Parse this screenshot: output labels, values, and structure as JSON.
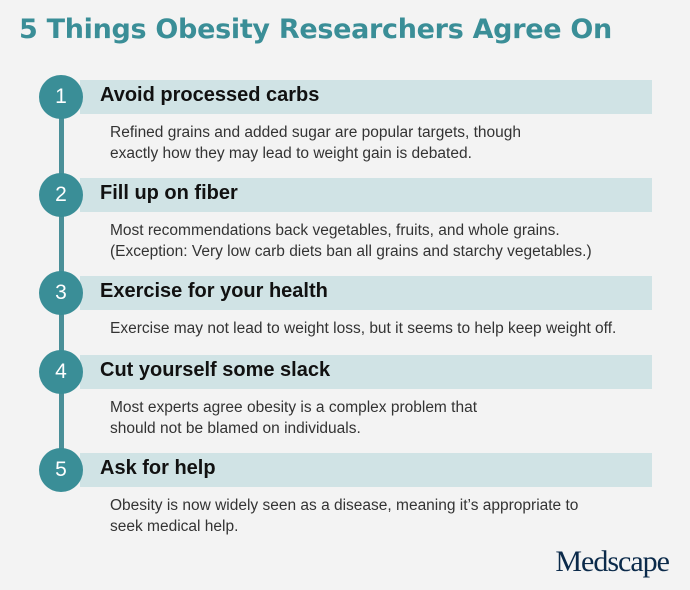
{
  "title": "5 Things Obesity Researchers Agree On",
  "items": [
    {
      "number": "1",
      "heading": "Avoid processed carbs",
      "lines": [
        "Refined grains and added sugar are popular targets, though",
        "exactly how they may lead to weight gain is debated."
      ]
    },
    {
      "number": "2",
      "heading": "Fill up on fiber",
      "lines": [
        "Most recommendations back vegetables, fruits, and whole grains.",
        "(Exception: Very low carb diets ban all grains and starchy vegetables.)"
      ]
    },
    {
      "number": "3",
      "heading": "Exercise for your health",
      "lines": [
        "Exercise may not lead to weight loss, but it seems to help keep weight off."
      ]
    },
    {
      "number": "4",
      "heading": "Cut yourself some slack",
      "lines": [
        "Most experts agree obesity is a complex problem that",
        "should not be blamed on individuals."
      ]
    },
    {
      "number": "5",
      "heading": "Ask for help",
      "lines": [
        "Obesity is now widely seen as a disease, meaning it’s appropriate to",
        "seek medical help."
      ]
    }
  ],
  "logo": "Medscape",
  "colors": {
    "accent": "#3a8e97",
    "heading_bar": "#d0e3e5",
    "background": "#f3f3f3",
    "logo": "#0b2a4a"
  }
}
